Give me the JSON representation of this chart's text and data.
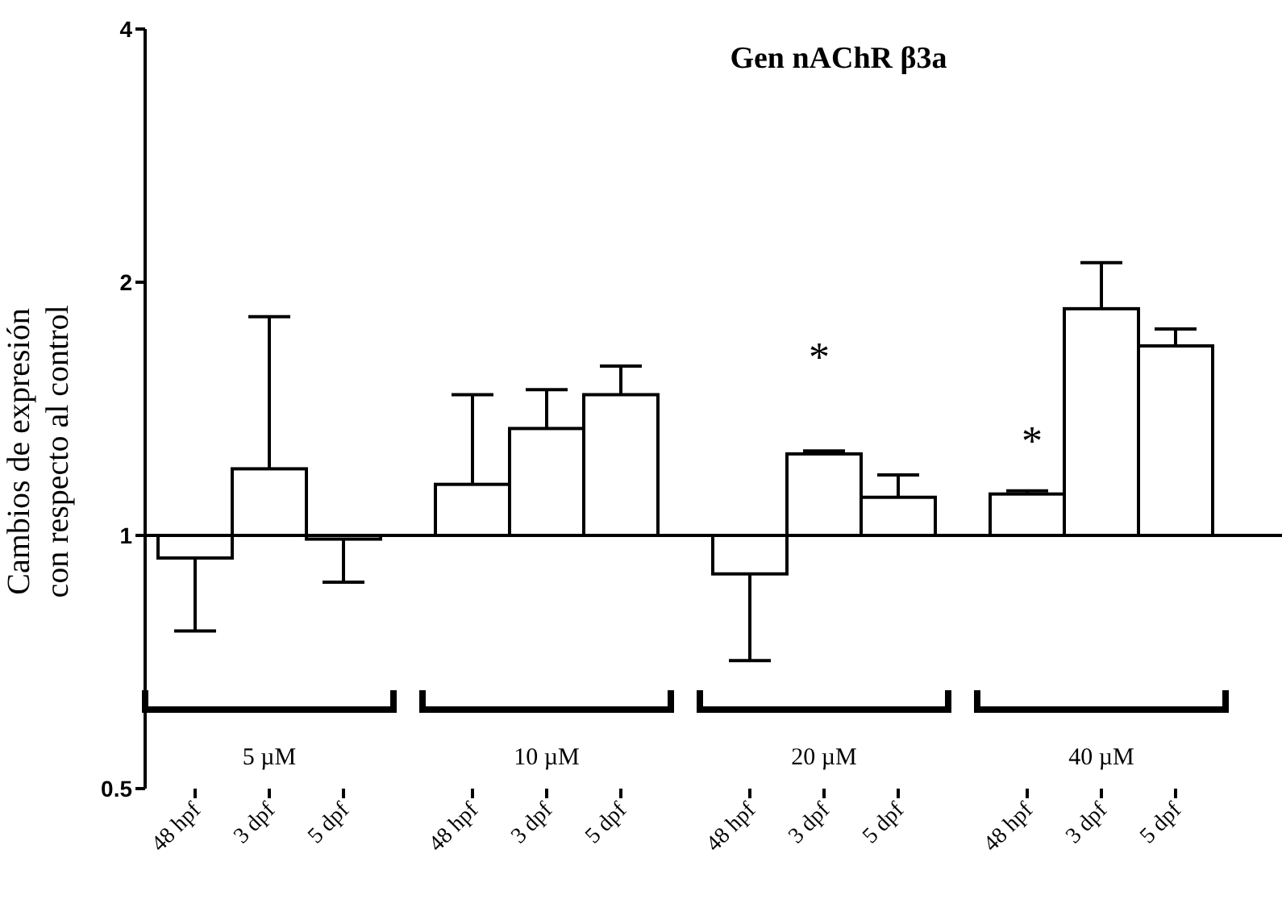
{
  "chart_data": {
    "type": "bar",
    "title": "Gen nAChR β3a",
    "ylabel": "Cambios de expresión\ncon respecto al control",
    "categories": [
      "48 hpf",
      "3 dpf",
      "5 dpf",
      "48 hpf",
      "3 dpf",
      "5 dpf",
      "48 hpf",
      "3 dpf",
      "5 dpf",
      "48 hpf",
      "3 dpf",
      "5 dpf"
    ],
    "base": [
      1,
      1,
      1,
      1,
      1,
      1,
      1,
      1,
      1,
      1,
      1,
      1
    ],
    "values": [
      -0.06,
      0.2,
      -0.01,
      0.15,
      0.34,
      0.47,
      -0.1,
      0.25,
      0.11,
      0.12,
      0.86,
      0.68
    ],
    "errors": [
      [
        0.77,
        0.94
      ],
      [
        1.2,
        1.82
      ],
      [
        0.88,
        0.99
      ],
      [
        1.15,
        1.47
      ],
      [
        1.34,
        1.49
      ],
      [
        1.47,
        1.59
      ],
      [
        0.71,
        0.9
      ],
      [
        1.25,
        1.26
      ],
      [
        1.11,
        1.18
      ],
      [
        1.12,
        1.13
      ],
      [
        1.86,
        2.11
      ],
      [
        1.68,
        1.76
      ]
    ],
    "color": "#ffffff",
    "log": "y",
    "ylim": [
      0.5,
      4
    ],
    "yticks": [
      0.5,
      1,
      2,
      4
    ],
    "ref_lines": [
      {
        "axis": "y",
        "value": 1,
        "color": "#000000"
      }
    ],
    "annotations": [
      "5 µM",
      "10 µM",
      "20 µM",
      "40 µM",
      "*",
      "*"
    ]
  }
}
